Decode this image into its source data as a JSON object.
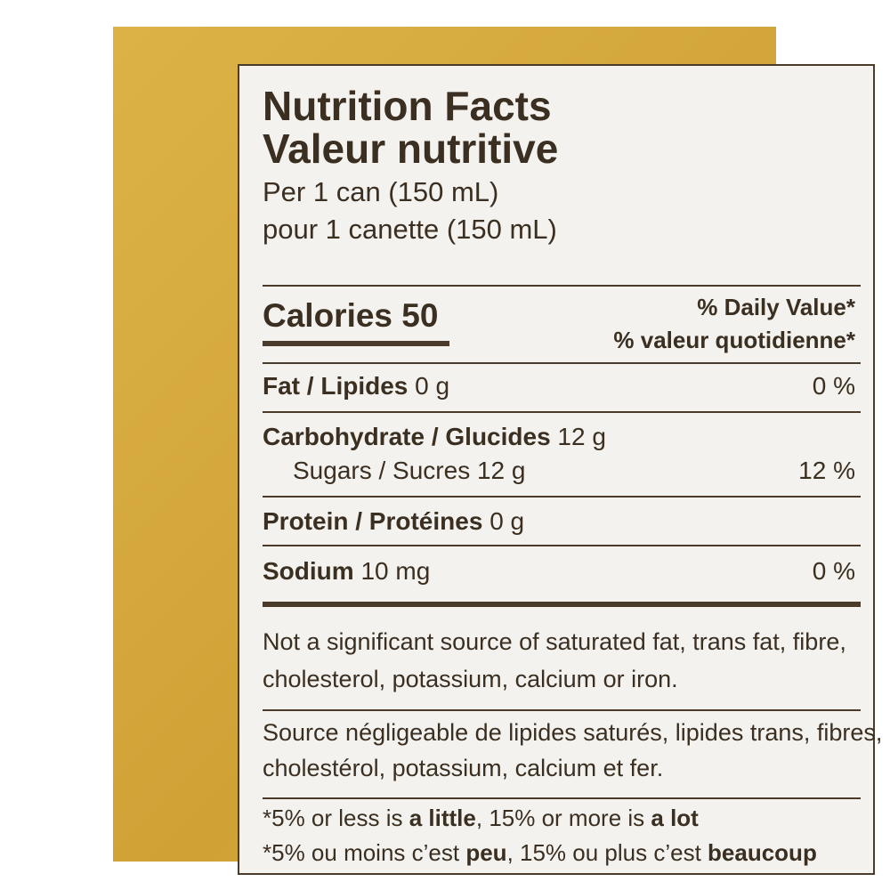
{
  "title": [
    "Nutrition Facts",
    "Valeur nutritive"
  ],
  "serving": [
    "Per 1 can (150 mL)",
    "pour 1 canette (150 mL)"
  ],
  "calories": {
    "label": "Calories",
    "value": "50"
  },
  "daily_value_header": [
    "% Daily Value*",
    "% valeur quotidienne*"
  ],
  "nutrients": [
    {
      "name": "Fat / Lipides",
      "amount": "0 g",
      "dv": "0 %"
    },
    {
      "name": "Carbohydrate / Glucides",
      "amount": "12 g"
    },
    {
      "name": "Sugars / Sucres",
      "amount": "12 g",
      "dv": "12 %"
    },
    {
      "name": "Protein / Protéines",
      "amount": "0 g"
    },
    {
      "name": "Sodium",
      "amount": "10 mg",
      "dv": "0 %"
    }
  ],
  "notes": [
    [
      "Not a significant source of saturated fat, trans fat, fibre,",
      "cholesterol, potassium, calcium or iron."
    ],
    [
      "Source négligeable de lipides saturés, lipides trans, fibres,",
      "cholestérol, potassium, calcium et fer."
    ]
  ],
  "footnotes": [
    [
      "*5% or less is ",
      "a little",
      ", 15% or more is ",
      "a lot"
    ],
    [
      "*5% ou moins c’est ",
      "peu",
      ", 15% ou plus c’est ",
      "beaucoup"
    ]
  ]
}
